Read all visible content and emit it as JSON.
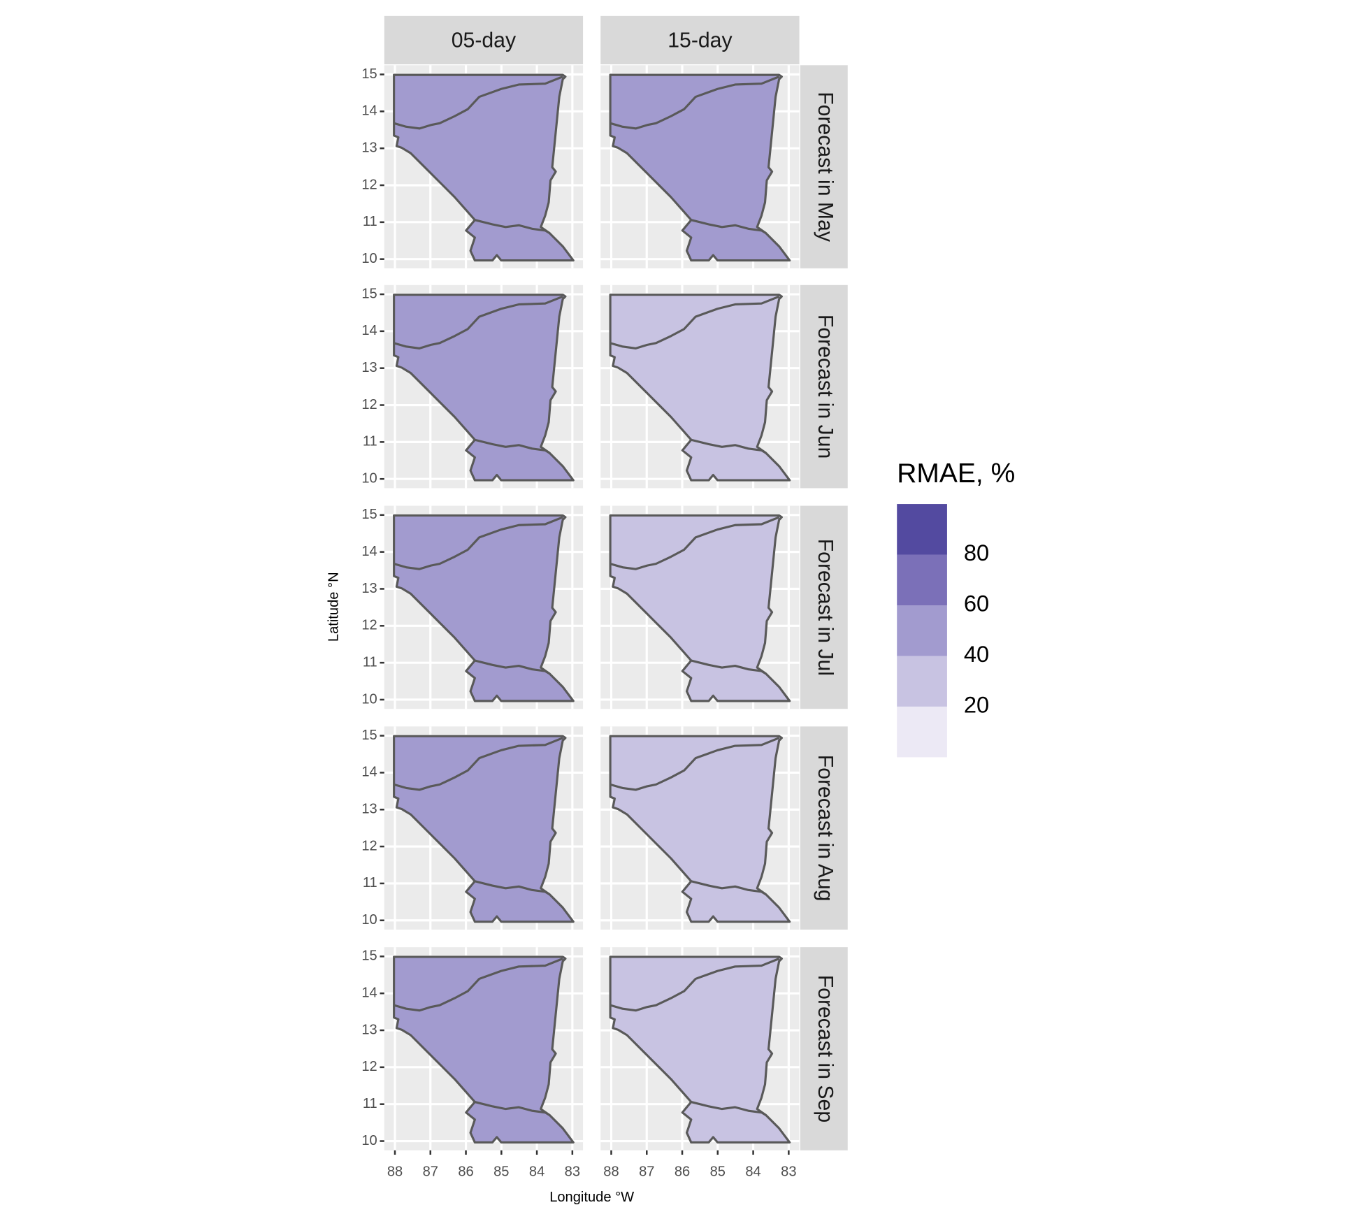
{
  "chart_data": {
    "type": "map",
    "columns": [
      "05-day",
      "15-day"
    ],
    "rows": [
      "Forecast in May",
      "Forecast in Jun",
      "Forecast in Jul",
      "Forecast in Aug",
      "Forecast in Sep"
    ],
    "xlabel": "Longitude °W",
    "ylabel": "Latitude °N",
    "xlim": [
      88.3,
      82.7
    ],
    "ylim": [
      9.75,
      15.25
    ],
    "xticks": [
      88,
      87,
      86,
      85,
      84,
      83
    ],
    "yticks": [
      10,
      11,
      12,
      13,
      14,
      15
    ],
    "grid": true,
    "values": [
      [
        55,
        45
      ],
      [
        42,
        32
      ],
      [
        42,
        30
      ],
      [
        42,
        30
      ],
      [
        45,
        30
      ]
    ],
    "legend": {
      "title": "RMAE, %",
      "breaks": [
        20,
        40,
        60,
        80
      ],
      "colors": [
        "#ece9f5",
        "#c8c3e2",
        "#a29bcf",
        "#7b70b8",
        "#534aa0"
      ]
    }
  }
}
